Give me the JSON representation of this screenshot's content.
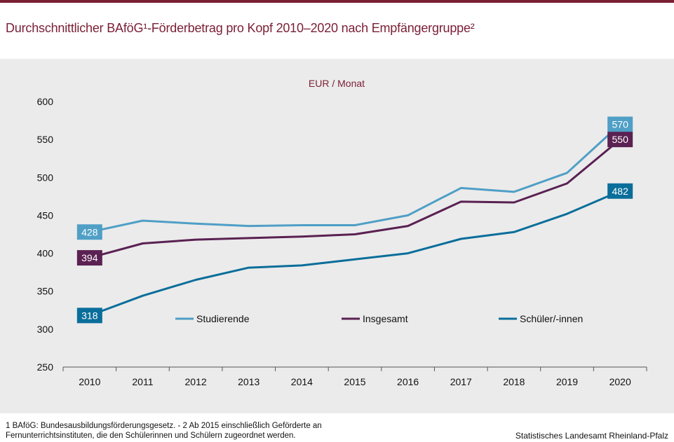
{
  "title": "Durchschnittlicher BAföG¹-Förderbetrag pro Kopf 2010–2020 nach Empfängergruppe²",
  "footnote": "1 BAföG: Bundesausbildungsförderungsgesetz.  - 2 Ab 2015 einschließlich Geförderte an Fernunterrichtsinstituten, die den Schülerinnen und Schülern zugeordnet werden.",
  "source": "Statistisches Landesamt Rheinland-Pfalz",
  "chart_data": {
    "type": "line",
    "ylabel": "EUR / Monat",
    "x": [
      "2010",
      "2011",
      "2012",
      "2013",
      "2014",
      "2015",
      "2016",
      "2017",
      "2018",
      "2019",
      "2020"
    ],
    "ylim": [
      250,
      600
    ],
    "yticks": [
      250,
      300,
      350,
      400,
      450,
      500,
      550,
      600
    ],
    "grid": false,
    "legend_position": "inside-bottom",
    "series": [
      {
        "name": "Studierende",
        "color": "#4f9fc6",
        "values": [
          428,
          443,
          439,
          436,
          437,
          437,
          450,
          486,
          481,
          506,
          570
        ]
      },
      {
        "name": "Insgesamt",
        "color": "#5a2152",
        "values": [
          394,
          413,
          418,
          420,
          422,
          425,
          436,
          468,
          467,
          492,
          550
        ]
      },
      {
        "name": "Schüler/-innen",
        "color": "#0a6e9a",
        "values": [
          318,
          344,
          365,
          381,
          384,
          392,
          400,
          419,
          428,
          452,
          482
        ]
      }
    ],
    "end_labels": [
      {
        "series": 0,
        "first": "428",
        "last": "570"
      },
      {
        "series": 1,
        "first": "394",
        "last": "550"
      },
      {
        "series": 2,
        "first": "318",
        "last": "482"
      }
    ]
  }
}
